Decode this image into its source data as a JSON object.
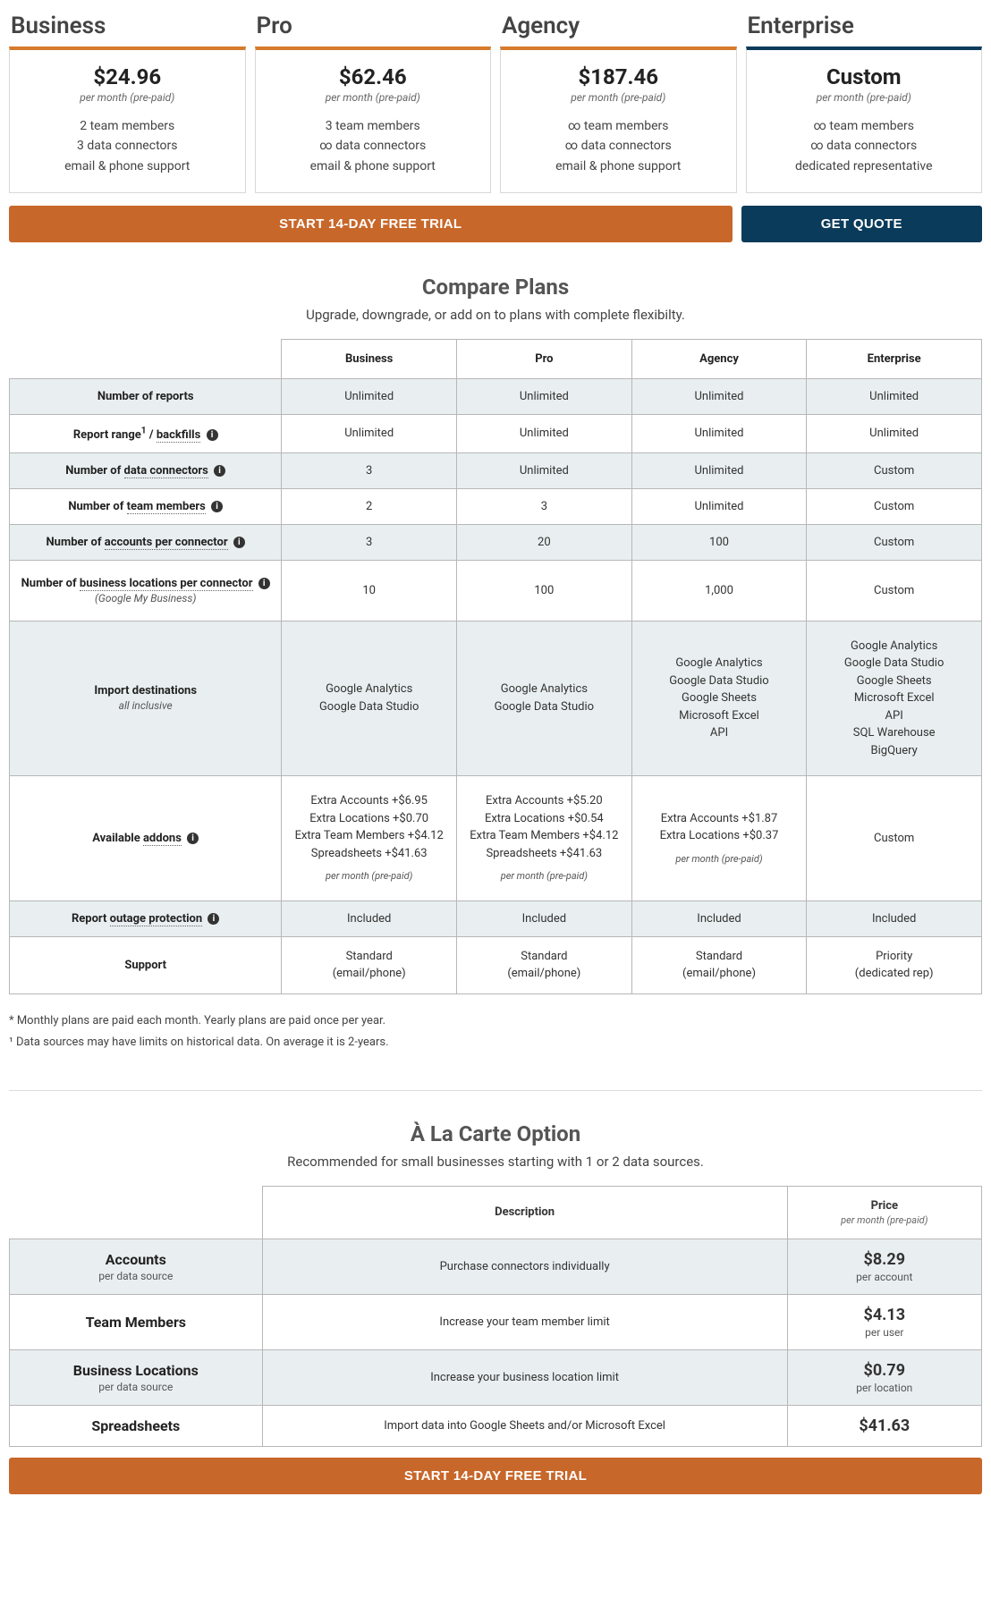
{
  "colors": {
    "orange": "#c8672a",
    "orange_border": "#d67a2c",
    "navy": "#0b3b5a",
    "row_alt_bg": "#e9eff0",
    "border": "#b7b7b7"
  },
  "plans": [
    {
      "name": "Business",
      "price": "$24.96",
      "period": "per month (pre-paid)",
      "accent": "orange",
      "features": [
        "2 team members",
        "3 data connectors",
        "email & phone support"
      ]
    },
    {
      "name": "Pro",
      "price": "$62.46",
      "period": "per month (pre-paid)",
      "accent": "orange",
      "features": [
        "3 team members",
        "∞ data connectors",
        "email & phone support"
      ]
    },
    {
      "name": "Agency",
      "price": "$187.46",
      "period": "per month (pre-paid)",
      "accent": "orange",
      "features": [
        "∞ team members",
        "∞ data connectors",
        "email & phone support"
      ]
    },
    {
      "name": "Enterprise",
      "price": "Custom",
      "period": "per month (pre-paid)",
      "accent": "navy",
      "features": [
        "∞ team members",
        "∞ data connectors",
        "dedicated representative"
      ]
    }
  ],
  "cta": {
    "trial": "START 14-DAY FREE TRIAL",
    "quote": "GET QUOTE"
  },
  "compare": {
    "title": "Compare Plans",
    "subtitle": "Upgrade, downgrade, or add on to plans with complete flexibilty.",
    "columns": [
      "Business",
      "Pro",
      "Agency",
      "Enterprise"
    ],
    "rows": [
      {
        "label": "Number of reports",
        "values": [
          "Unlimited",
          "Unlimited",
          "Unlimited",
          "Unlimited"
        ]
      },
      {
        "label_html": "Report range<span class='small-sup'>1</span> / <span class='dotted'>backfills</span>",
        "info": true,
        "values": [
          "Unlimited",
          "Unlimited",
          "Unlimited",
          "Unlimited"
        ]
      },
      {
        "label_html": "Number of <span class='dotted'>data connectors</span>",
        "info": true,
        "values": [
          "3",
          "Unlimited",
          "Unlimited",
          "Custom"
        ]
      },
      {
        "label_html": "Number of <span class='dotted'>team members</span>",
        "info": true,
        "values": [
          "2",
          "3",
          "Unlimited",
          "Custom"
        ]
      },
      {
        "label_html": "Number of <span class='dotted'>accounts per connector</span>",
        "info": true,
        "values": [
          "3",
          "20",
          "100",
          "Custom"
        ]
      },
      {
        "label_html": "Number of <span class='dotted'>business locations per connector</span>",
        "info": true,
        "sublabel": "(Google My Business)",
        "taller": true,
        "values": [
          "10",
          "100",
          "1,000",
          "Custom"
        ]
      },
      {
        "label": "Import destinations",
        "sublabel": "all inclusive",
        "taller": true,
        "values_multi": [
          [
            "Google Analytics",
            "Google Data Studio"
          ],
          [
            "Google Analytics",
            "Google Data Studio"
          ],
          [
            "Google Analytics",
            "Google Data Studio",
            "Google Sheets",
            "Microsoft Excel",
            "API"
          ],
          [
            "Google Analytics",
            "Google Data Studio",
            "Google Sheets",
            "Microsoft Excel",
            "API",
            "SQL Warehouse",
            "BigQuery"
          ]
        ]
      },
      {
        "label_html": "Available <span class='dotted'>addons</span>",
        "info": true,
        "taller": true,
        "values_multi": [
          [
            "Extra Accounts +$6.95",
            "Extra Locations +$0.70",
            "Extra Team Members +$4.12",
            "Spreadsheets +$41.63"
          ],
          [
            "Extra Accounts +$5.20",
            "Extra Locations +$0.54",
            "Extra Team Members +$4.12",
            "Spreadsheets +$41.63"
          ],
          [
            "Extra Accounts +$1.87",
            "Extra Locations +$0.37"
          ],
          [
            "Custom"
          ]
        ],
        "cell_note_cols": [
          0,
          1,
          2
        ],
        "cell_note": "per month (pre-paid)"
      },
      {
        "label_html": "Report <span class='dotted'>outage protection</span>",
        "info": true,
        "values": [
          "Included",
          "Included",
          "Included",
          "Included"
        ]
      },
      {
        "label": "Support",
        "values_multi": [
          [
            "Standard",
            "(email/phone)"
          ],
          [
            "Standard",
            "(email/phone)"
          ],
          [
            "Standard",
            "(email/phone)"
          ],
          [
            "Priority",
            "(dedicated rep)"
          ]
        ]
      }
    ],
    "footnotes": [
      "* Monthly plans are paid each month. Yearly plans are paid once per year.",
      "¹ Data sources may have limits on historical data. On average it is 2-years."
    ]
  },
  "carte": {
    "title": "À La Carte Option",
    "subtitle": "Recommended for small businesses starting with 1 or 2 data sources.",
    "headers": {
      "desc": "Description",
      "price": "Price",
      "price_sub": "per month (pre-paid)"
    },
    "rows": [
      {
        "label": "Accounts",
        "sublabel": "per data source",
        "desc": "Purchase connectors individually",
        "price": "$8.29",
        "per": "per account"
      },
      {
        "label": "Team Members",
        "desc": "Increase your team member limit",
        "price": "$4.13",
        "per": "per user"
      },
      {
        "label": "Business Locations",
        "sublabel": "per data source",
        "desc": "Increase your business location limit",
        "price": "$0.79",
        "per": "per location"
      },
      {
        "label": "Spreadsheets",
        "desc": "Import data into Google Sheets and/or Microsoft Excel",
        "price": "$41.63",
        "per": ""
      }
    ]
  }
}
